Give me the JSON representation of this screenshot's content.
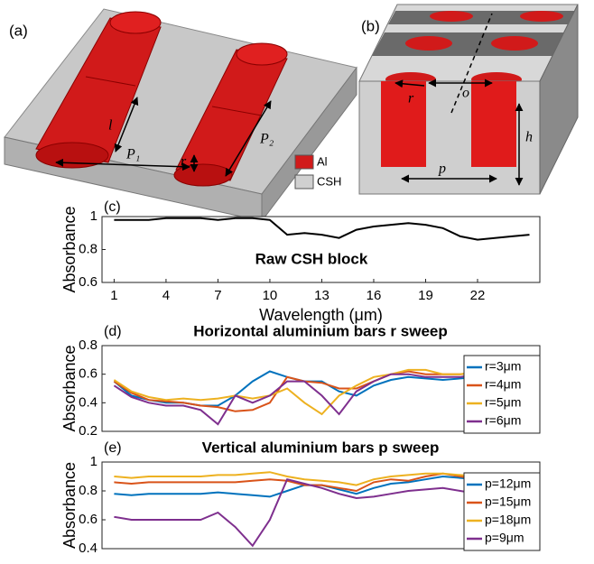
{
  "chart_data": [
    {
      "type": "line",
      "panel": "(c)",
      "title": "Raw CSH block",
      "ylabel": "Absorbance",
      "xlabel": "Wavelength (μm)",
      "x": [
        1,
        2,
        3,
        4,
        5,
        6,
        7,
        8,
        9,
        10,
        11,
        12,
        13,
        14,
        15,
        16,
        17,
        18,
        19,
        20,
        21,
        22,
        23,
        24,
        25
      ],
      "xlim": [
        0.3,
        25.6
      ],
      "xticks": [
        1,
        4,
        7,
        10,
        13,
        16,
        19,
        22
      ],
      "ylim": [
        0.6,
        1
      ],
      "yticks": [
        0.6,
        0.8,
        1
      ],
      "series": [
        {
          "color": "#000000",
          "values": [
            0.98,
            0.98,
            0.98,
            0.99,
            0.99,
            0.99,
            0.98,
            0.99,
            0.99,
            0.98,
            0.89,
            0.9,
            0.89,
            0.87,
            0.92,
            0.94,
            0.95,
            0.96,
            0.95,
            0.93,
            0.88,
            0.86,
            0.87,
            0.88,
            0.89
          ]
        }
      ]
    },
    {
      "type": "line",
      "panel": "(d)",
      "title": "Horizontal aluminium bars r sweep",
      "ylabel": "Absorbance",
      "x": [
        1,
        2,
        3,
        4,
        5,
        6,
        7,
        8,
        9,
        10,
        11,
        12,
        13,
        14,
        15,
        16,
        17,
        18,
        19,
        20,
        21,
        22,
        23,
        24,
        25
      ],
      "xlim": [
        0.3,
        25.6
      ],
      "ylim": [
        0.2,
        0.8
      ],
      "yticks": [
        0.2,
        0.4,
        0.6,
        0.8
      ],
      "legend": "right",
      "series": [
        {
          "name": "r=3μm",
          "color": "#0072bd",
          "values": [
            0.55,
            0.45,
            0.42,
            0.4,
            0.4,
            0.38,
            0.38,
            0.45,
            0.55,
            0.62,
            0.58,
            0.55,
            0.55,
            0.48,
            0.45,
            0.52,
            0.56,
            0.58,
            0.57,
            0.56,
            0.57,
            0.58,
            0.59,
            0.6,
            0.62
          ]
        },
        {
          "name": "r=4μm",
          "color": "#d95319",
          "values": [
            0.55,
            0.47,
            0.42,
            0.41,
            0.4,
            0.38,
            0.37,
            0.34,
            0.35,
            0.4,
            0.58,
            0.55,
            0.54,
            0.5,
            0.5,
            0.55,
            0.6,
            0.62,
            0.6,
            0.6,
            0.6,
            0.61,
            0.62,
            0.64,
            0.66
          ]
        },
        {
          "name": "r=5μm",
          "color": "#edb120",
          "values": [
            0.56,
            0.48,
            0.44,
            0.42,
            0.43,
            0.42,
            0.43,
            0.45,
            0.43,
            0.45,
            0.5,
            0.4,
            0.32,
            0.45,
            0.52,
            0.58,
            0.6,
            0.63,
            0.63,
            0.6,
            0.6,
            0.62,
            0.63,
            0.64,
            0.65
          ]
        },
        {
          "name": "r=6μm",
          "color": "#7e2f8e",
          "values": [
            0.52,
            0.44,
            0.4,
            0.38,
            0.38,
            0.35,
            0.25,
            0.45,
            0.4,
            0.45,
            0.55,
            0.55,
            0.45,
            0.32,
            0.48,
            0.55,
            0.6,
            0.6,
            0.58,
            0.58,
            0.58,
            0.6,
            0.6,
            0.61,
            0.62
          ]
        }
      ]
    },
    {
      "type": "line",
      "panel": "(e)",
      "title": "Vertical aluminium bars p sweep",
      "ylabel": "Absorbance",
      "x": [
        1,
        2,
        3,
        4,
        5,
        6,
        7,
        8,
        9,
        10,
        11,
        12,
        13,
        14,
        15,
        16,
        17,
        18,
        19,
        20,
        21,
        22,
        23,
        24,
        25
      ],
      "xlim": [
        0.3,
        25.6
      ],
      "ylim": [
        0.4,
        1
      ],
      "yticks": [
        0.4,
        0.6,
        0.8,
        1
      ],
      "legend": "right",
      "series": [
        {
          "name": "p=12μm",
          "color": "#0072bd",
          "values": [
            0.78,
            0.77,
            0.78,
            0.78,
            0.78,
            0.78,
            0.79,
            0.78,
            0.77,
            0.76,
            0.8,
            0.84,
            0.84,
            0.81,
            0.78,
            0.82,
            0.85,
            0.86,
            0.88,
            0.9,
            0.89,
            0.88,
            0.86,
            0.84,
            0.82
          ]
        },
        {
          "name": "p=15μm",
          "color": "#d95319",
          "values": [
            0.86,
            0.85,
            0.86,
            0.86,
            0.86,
            0.86,
            0.86,
            0.86,
            0.87,
            0.88,
            0.87,
            0.84,
            0.84,
            0.82,
            0.8,
            0.86,
            0.88,
            0.87,
            0.9,
            0.92,
            0.9,
            0.88,
            0.87,
            0.86,
            0.85
          ]
        },
        {
          "name": "p=18μm",
          "color": "#edb120",
          "values": [
            0.9,
            0.89,
            0.9,
            0.9,
            0.9,
            0.9,
            0.91,
            0.91,
            0.92,
            0.93,
            0.9,
            0.88,
            0.87,
            0.86,
            0.84,
            0.88,
            0.9,
            0.91,
            0.92,
            0.92,
            0.91,
            0.9,
            0.89,
            0.88,
            0.87
          ]
        },
        {
          "name": "p=9μm",
          "color": "#7e2f8e",
          "values": [
            0.62,
            0.6,
            0.6,
            0.6,
            0.6,
            0.6,
            0.65,
            0.55,
            0.42,
            0.6,
            0.88,
            0.85,
            0.82,
            0.78,
            0.75,
            0.76,
            0.78,
            0.8,
            0.81,
            0.82,
            0.8,
            0.78,
            0.75,
            0.72,
            0.68
          ]
        }
      ]
    }
  ],
  "diagram_labels": {
    "a": "(a)",
    "l": "l",
    "P1": "P₁",
    "P2": "P₂",
    "r_a": "r",
    "legend_al": "Al",
    "legend_csh": "CSH",
    "b": "(b)",
    "o": "o",
    "r_b": "r",
    "h": "h",
    "p": "p"
  }
}
